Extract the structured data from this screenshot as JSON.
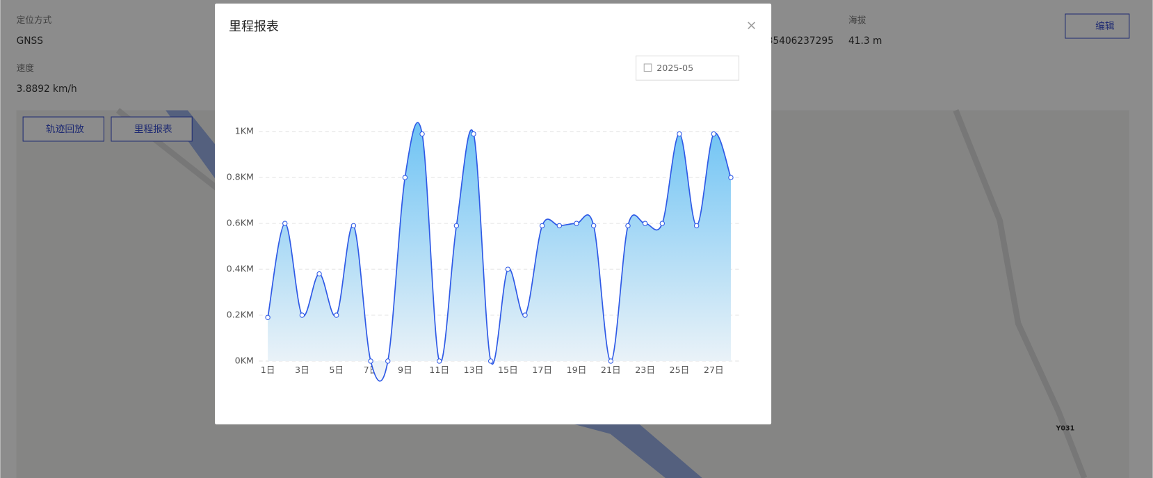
{
  "page": {
    "fields": [
      {
        "label": "定位方式",
        "value": "GNSS"
      },
      {
        "label": "速度",
        "value": "3.8892 km/h"
      },
      {
        "label": "海拔",
        "value": "41.3 m"
      }
    ],
    "partial_value": "35406237295",
    "edit_button": "编辑",
    "buttons": [
      "轨迹回放",
      "里程报表"
    ],
    "map_label": "Y031"
  },
  "modal": {
    "title": "里程报表",
    "close": "×",
    "date": "2025-05"
  },
  "chart_data": {
    "type": "line",
    "categories": [
      "1日",
      null,
      "3日",
      null,
      "5日",
      null,
      "7日",
      null,
      "9日",
      null,
      "11日",
      null,
      "13日",
      null,
      "15日",
      null,
      "17日",
      null,
      "19日",
      null,
      "21日",
      null,
      "23日",
      null,
      "25日",
      null,
      "27日",
      null
    ],
    "values": [
      0.19,
      0.6,
      0.2,
      0.38,
      0.2,
      0.59,
      0,
      0,
      0.8,
      0.99,
      0,
      0.59,
      0.99,
      0,
      0.4,
      0.2,
      0.59,
      0.59,
      0.6,
      0.59,
      0,
      0.59,
      0.6,
      0.6,
      0.99,
      0.59,
      0.99,
      0.8
    ],
    "color": "#2f5ae6",
    "smooth": true,
    "area": true,
    "grid": true,
    "ylim": [
      0,
      1
    ],
    "yticks": [
      {
        "value": 0,
        "label": "0KM"
      },
      {
        "value": 0.2,
        "label": "0.2KM"
      },
      {
        "value": 0.4,
        "label": "0.4KM"
      },
      {
        "value": 0.6,
        "label": "0.6KM"
      },
      {
        "value": 0.8,
        "label": "0.8KM"
      },
      {
        "value": 1,
        "label": "1KM"
      }
    ]
  }
}
